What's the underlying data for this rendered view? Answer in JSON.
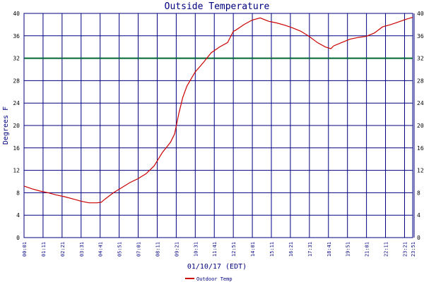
{
  "chart_data": {
    "type": "line",
    "title": "Outside Temperature",
    "ylabel": "Degrees F",
    "xlabel": "01/10/17 (EDT)",
    "ylim": [
      0,
      40
    ],
    "yticks": [
      0,
      4,
      8,
      12,
      16,
      20,
      24,
      28,
      32,
      36,
      40
    ],
    "ytick_labels": [
      "0",
      "4",
      "8",
      "12",
      "16",
      "20",
      "24",
      "28",
      "32",
      "36",
      "40"
    ],
    "xlim": [
      "00:01",
      "23:51"
    ],
    "xticks": [
      "00:01",
      "01:11",
      "02:21",
      "03:31",
      "04:41",
      "05:51",
      "07:01",
      "08:11",
      "09:21",
      "10:31",
      "11:41",
      "12:51",
      "14:01",
      "15:11",
      "16:21",
      "17:31",
      "18:41",
      "19:51",
      "21:01",
      "22:11",
      "23:21",
      "23:51"
    ],
    "grid": true,
    "reference_line": {
      "y": 32,
      "color": "#006633"
    },
    "series": [
      {
        "name": "Outdoor Temp",
        "color": "#cc0000",
        "x": [
          "00:01",
          "00:30",
          "01:00",
          "01:30",
          "02:00",
          "02:30",
          "03:00",
          "03:30",
          "04:00",
          "04:30",
          "04:45",
          "05:00",
          "05:30",
          "06:00",
          "06:30",
          "07:00",
          "07:30",
          "08:00",
          "08:30",
          "09:00",
          "09:15",
          "09:30",
          "09:45",
          "10:00",
          "10:30",
          "11:00",
          "11:30",
          "12:00",
          "12:30",
          "12:51",
          "13:00",
          "13:30",
          "14:00",
          "14:30",
          "15:00",
          "15:30",
          "16:00",
          "16:30",
          "17:00",
          "17:30",
          "18:00",
          "18:30",
          "18:50",
          "19:00",
          "19:30",
          "20:00",
          "20:30",
          "21:00",
          "21:30",
          "22:00",
          "22:30",
          "23:00",
          "23:30",
          "23:51"
        ],
        "y": [
          9.2,
          8.7,
          8.3,
          8.0,
          7.6,
          7.3,
          6.9,
          6.5,
          6.2,
          6.2,
          6.3,
          6.9,
          8.0,
          8.9,
          9.8,
          10.5,
          11.4,
          12.8,
          15.2,
          17.0,
          18.5,
          22.0,
          25.0,
          27.0,
          29.5,
          31.2,
          33.0,
          34.0,
          34.8,
          36.8,
          37.0,
          38.0,
          38.8,
          39.2,
          38.6,
          38.3,
          37.9,
          37.4,
          36.8,
          35.9,
          34.8,
          34.0,
          33.7,
          34.2,
          34.8,
          35.4,
          35.7,
          35.9,
          36.5,
          37.6,
          38.0,
          38.5,
          39.0,
          39.3
        ]
      }
    ],
    "legend": [
      "Outdoor Temp"
    ],
    "legend_position": "bottom-center"
  }
}
